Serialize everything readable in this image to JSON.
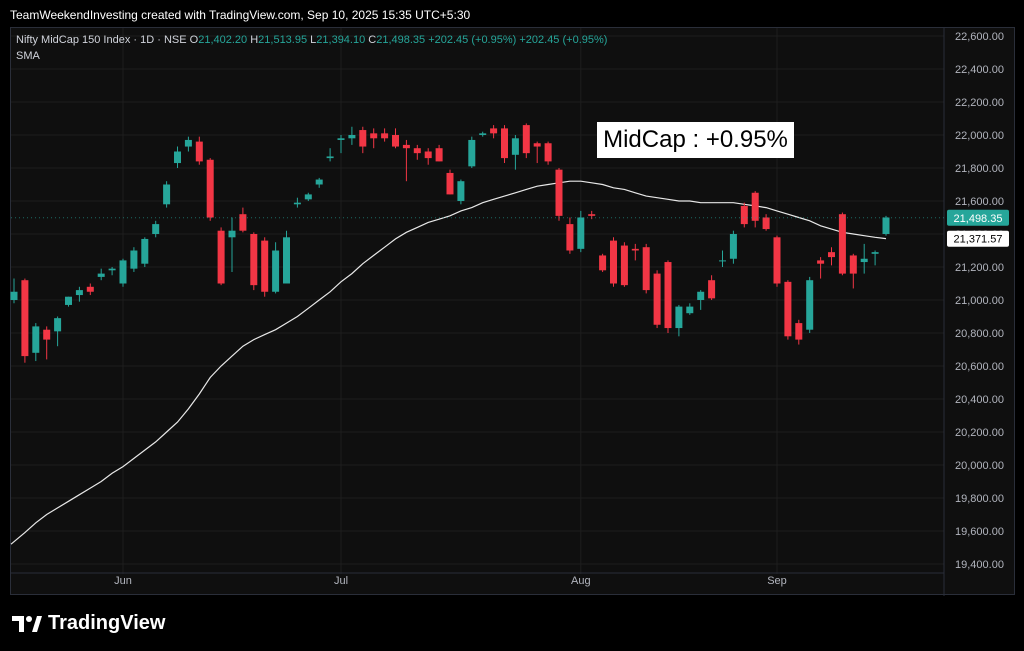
{
  "header": {
    "credit": "TeamWeekendInvesting created with TradingView.com, Sep 10, 2025 15:35 UTC+5:30"
  },
  "legend": {
    "symbol": "Nifty MidCap 150 Index · 1D · NSE",
    "o_label": "O",
    "o_value": "21,402.20",
    "h_label": "H",
    "h_value": "21,513.95",
    "l_label": "L",
    "l_value": "21,394.10",
    "c_label": "C",
    "c_value": "21,498.35 +202.45 (+0.95%)",
    "change": "+202.45 (+0.95%)",
    "indicator": "SMA"
  },
  "annotation": "MidCap : +0.95%",
  "brand": "TradingView",
  "colors": {
    "up": "#26a69a",
    "down": "#f23645",
    "sma": "#e8e8e8",
    "grid": "#1e1e1e",
    "price_tag": "#26a69a",
    "sma_tag": "#ffffff"
  },
  "chart_data": {
    "type": "candlestick",
    "ylim": [
      19400,
      22600
    ],
    "y_ticks": [
      "22,600.00",
      "22,400.00",
      "22,200.00",
      "22,000.00",
      "21,800.00",
      "21,600.00",
      "21,400.00",
      "21,200.00",
      "21,000.00",
      "20,800.00",
      "20,600.00",
      "20,400.00",
      "20,200.00",
      "20,000.00",
      "19,800.00",
      "19,600.00",
      "19,400.00"
    ],
    "y_tick_values": [
      22600,
      22400,
      22200,
      22000,
      21800,
      21600,
      21400,
      21200,
      21000,
      20800,
      20600,
      20400,
      20200,
      20000,
      19800,
      19600,
      19400
    ],
    "x_labels": [
      {
        "label": "Jun",
        "index": 10
      },
      {
        "label": "Jul",
        "index": 30
      },
      {
        "label": "Aug",
        "index": 52
      },
      {
        "label": "Sep",
        "index": 70
      }
    ],
    "last_price": {
      "label": "21,498.35",
      "value": 21498.35
    },
    "sma_last": {
      "label": "21,371.57",
      "value": 21371.57
    },
    "candles": [
      {
        "o": 21000,
        "h": 21130,
        "l": 20980,
        "c": 21050
      },
      {
        "o": 21120,
        "h": 21130,
        "l": 20620,
        "c": 20660
      },
      {
        "o": 20680,
        "h": 20860,
        "l": 20630,
        "c": 20840
      },
      {
        "o": 20820,
        "h": 20840,
        "l": 20640,
        "c": 20760
      },
      {
        "o": 20810,
        "h": 20900,
        "l": 20720,
        "c": 20890
      },
      {
        "o": 20970,
        "h": 21020,
        "l": 20960,
        "c": 21020
      },
      {
        "o": 21030,
        "h": 21080,
        "l": 20990,
        "c": 21060
      },
      {
        "o": 21080,
        "h": 21100,
        "l": 21030,
        "c": 21050
      },
      {
        "o": 21140,
        "h": 21190,
        "l": 21120,
        "c": 21160
      },
      {
        "o": 21180,
        "h": 21200,
        "l": 21150,
        "c": 21190
      },
      {
        "o": 21100,
        "h": 21250,
        "l": 21080,
        "c": 21240
      },
      {
        "o": 21190,
        "h": 21320,
        "l": 21170,
        "c": 21300
      },
      {
        "o": 21220,
        "h": 21380,
        "l": 21200,
        "c": 21370
      },
      {
        "o": 21400,
        "h": 21480,
        "l": 21380,
        "c": 21460
      },
      {
        "o": 21580,
        "h": 21720,
        "l": 21560,
        "c": 21700
      },
      {
        "o": 21830,
        "h": 21930,
        "l": 21800,
        "c": 21900
      },
      {
        "o": 21930,
        "h": 21990,
        "l": 21900,
        "c": 21970
      },
      {
        "o": 21960,
        "h": 21990,
        "l": 21820,
        "c": 21840
      },
      {
        "o": 21850,
        "h": 21860,
        "l": 21480,
        "c": 21500
      },
      {
        "o": 21420,
        "h": 21440,
        "l": 21090,
        "c": 21100
      },
      {
        "o": 21380,
        "h": 21500,
        "l": 21170,
        "c": 21420
      },
      {
        "o": 21520,
        "h": 21560,
        "l": 21410,
        "c": 21420
      },
      {
        "o": 21400,
        "h": 21410,
        "l": 21060,
        "c": 21090
      },
      {
        "o": 21360,
        "h": 21380,
        "l": 21020,
        "c": 21050
      },
      {
        "o": 21050,
        "h": 21350,
        "l": 21040,
        "c": 21300
      },
      {
        "o": 21100,
        "h": 21420,
        "l": 21100,
        "c": 21380
      },
      {
        "o": 21580,
        "h": 21620,
        "l": 21560,
        "c": 21590
      },
      {
        "o": 21610,
        "h": 21650,
        "l": 21600,
        "c": 21640
      },
      {
        "o": 21700,
        "h": 21740,
        "l": 21680,
        "c": 21730
      },
      {
        "o": 21860,
        "h": 21920,
        "l": 21840,
        "c": 21870
      },
      {
        "o": 21970,
        "h": 22000,
        "l": 21890,
        "c": 21980
      },
      {
        "o": 21980,
        "h": 22050,
        "l": 21940,
        "c": 22000
      },
      {
        "o": 22030,
        "h": 22050,
        "l": 21890,
        "c": 21930
      },
      {
        "o": 22010,
        "h": 22040,
        "l": 21920,
        "c": 21980
      },
      {
        "o": 22010,
        "h": 22040,
        "l": 21960,
        "c": 21980
      },
      {
        "o": 22000,
        "h": 22040,
        "l": 21920,
        "c": 21930
      },
      {
        "o": 21940,
        "h": 21970,
        "l": 21720,
        "c": 21920
      },
      {
        "o": 21920,
        "h": 21940,
        "l": 21850,
        "c": 21890
      },
      {
        "o": 21900,
        "h": 21920,
        "l": 21820,
        "c": 21860
      },
      {
        "o": 21920,
        "h": 21940,
        "l": 21840,
        "c": 21840
      },
      {
        "o": 21770,
        "h": 21790,
        "l": 21640,
        "c": 21640
      },
      {
        "o": 21600,
        "h": 21730,
        "l": 21580,
        "c": 21720
      },
      {
        "o": 21810,
        "h": 21990,
        "l": 21800,
        "c": 21970
      },
      {
        "o": 22000,
        "h": 22020,
        "l": 21990,
        "c": 22010
      },
      {
        "o": 22040,
        "h": 22060,
        "l": 21980,
        "c": 22010
      },
      {
        "o": 22040,
        "h": 22060,
        "l": 21830,
        "c": 21860
      },
      {
        "o": 21880,
        "h": 22000,
        "l": 21790,
        "c": 21980
      },
      {
        "o": 22060,
        "h": 22070,
        "l": 21860,
        "c": 21890
      },
      {
        "o": 21950,
        "h": 21960,
        "l": 21830,
        "c": 21930
      },
      {
        "o": 21950,
        "h": 21960,
        "l": 21820,
        "c": 21840
      },
      {
        "o": 21790,
        "h": 21800,
        "l": 21480,
        "c": 21510
      },
      {
        "o": 21460,
        "h": 21500,
        "l": 21280,
        "c": 21300
      },
      {
        "o": 21310,
        "h": 21540,
        "l": 21290,
        "c": 21500
      },
      {
        "o": 21520,
        "h": 21540,
        "l": 21490,
        "c": 21510
      },
      {
        "o": 21270,
        "h": 21280,
        "l": 21170,
        "c": 21180
      },
      {
        "o": 21360,
        "h": 21380,
        "l": 21080,
        "c": 21100
      },
      {
        "o": 21330,
        "h": 21350,
        "l": 21080,
        "c": 21090
      },
      {
        "o": 21310,
        "h": 21340,
        "l": 21240,
        "c": 21300
      },
      {
        "o": 21320,
        "h": 21340,
        "l": 21040,
        "c": 21060
      },
      {
        "o": 21160,
        "h": 21180,
        "l": 20830,
        "c": 20850
      },
      {
        "o": 21230,
        "h": 21240,
        "l": 20800,
        "c": 20830
      },
      {
        "o": 20830,
        "h": 20970,
        "l": 20780,
        "c": 20960
      },
      {
        "o": 20920,
        "h": 20980,
        "l": 20910,
        "c": 20960
      },
      {
        "o": 21000,
        "h": 21060,
        "l": 20940,
        "c": 21050
      },
      {
        "o": 21120,
        "h": 21150,
        "l": 21000,
        "c": 21010
      },
      {
        "o": 21240,
        "h": 21300,
        "l": 21200,
        "c": 21240
      },
      {
        "o": 21250,
        "h": 21420,
        "l": 21220,
        "c": 21400
      },
      {
        "o": 21570,
        "h": 21590,
        "l": 21440,
        "c": 21460
      },
      {
        "o": 21650,
        "h": 21660,
        "l": 21440,
        "c": 21480
      },
      {
        "o": 21500,
        "h": 21520,
        "l": 21420,
        "c": 21430
      },
      {
        "o": 21380,
        "h": 21390,
        "l": 21080,
        "c": 21100
      },
      {
        "o": 21110,
        "h": 21120,
        "l": 20760,
        "c": 20780
      },
      {
        "o": 20860,
        "h": 20880,
        "l": 20730,
        "c": 20760
      },
      {
        "o": 20820,
        "h": 21140,
        "l": 20800,
        "c": 21120
      },
      {
        "o": 21240,
        "h": 21260,
        "l": 21130,
        "c": 21220
      },
      {
        "o": 21290,
        "h": 21320,
        "l": 21210,
        "c": 21260
      },
      {
        "o": 21520,
        "h": 21530,
        "l": 21150,
        "c": 21160
      },
      {
        "o": 21270,
        "h": 21280,
        "l": 21070,
        "c": 21160
      },
      {
        "o": 21230,
        "h": 21340,
        "l": 21160,
        "c": 21250
      },
      {
        "o": 21280,
        "h": 21300,
        "l": 21210,
        "c": 21290
      },
      {
        "o": 21400,
        "h": 21510,
        "l": 21390,
        "c": 21500
      }
    ],
    "sma": [
      19520,
      19590,
      19650,
      19700,
      19740,
      19780,
      19820,
      19860,
      19900,
      19950,
      19990,
      20040,
      20090,
      20140,
      20200,
      20260,
      20340,
      20430,
      20530,
      20600,
      20660,
      20720,
      20760,
      20790,
      20820,
      20860,
      20900,
      20950,
      21000,
      21050,
      21110,
      21160,
      21220,
      21270,
      21320,
      21370,
      21410,
      21440,
      21470,
      21490,
      21510,
      21540,
      21560,
      21590,
      21610,
      21630,
      21650,
      21670,
      21690,
      21700,
      21710,
      21720,
      21720,
      21710,
      21700,
      21680,
      21670,
      21650,
      21630,
      21620,
      21610,
      21600,
      21600,
      21590,
      21590,
      21590,
      21590,
      21580,
      21570,
      21560,
      21540,
      21520,
      21500,
      21480,
      21450,
      21430,
      21410,
      21400,
      21390,
      21380,
      21372
    ]
  }
}
